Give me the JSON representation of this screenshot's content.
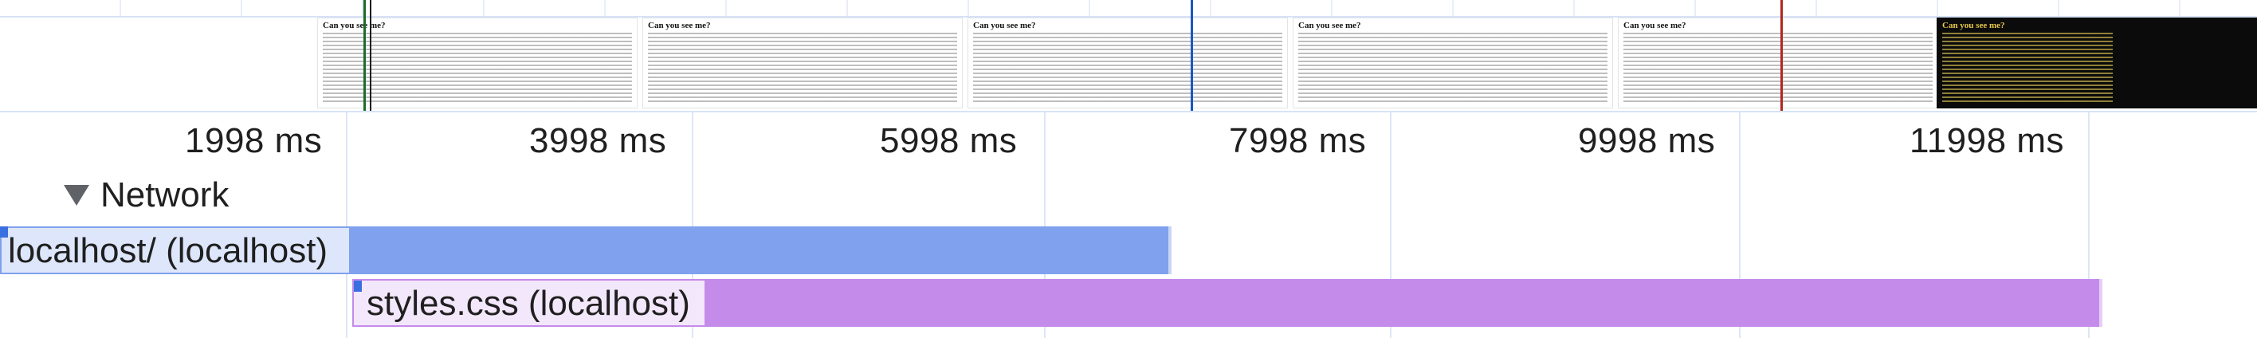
{
  "ruler": {
    "ticks": [
      "1998 ms",
      "3998 ms",
      "5998 ms",
      "7998 ms",
      "9998 ms",
      "11998 ms"
    ]
  },
  "filmstrip": {
    "frames": [
      {
        "title": "Can you see me?",
        "theme": "light"
      },
      {
        "title": "Can you see me?",
        "theme": "light"
      },
      {
        "title": "Can you see me?",
        "theme": "light"
      },
      {
        "title": "Can you see me?",
        "theme": "light"
      },
      {
        "title": "Can you see me?",
        "theme": "light"
      },
      {
        "title": "Can you see me?",
        "theme": "dark"
      }
    ],
    "marker_colors": {
      "green": "#1e6b2a",
      "blue": "#1a56c4",
      "red": "#b3261e"
    }
  },
  "network": {
    "label": "Network",
    "expanded_icon": "triangle-down-icon",
    "requests": [
      {
        "label": "localhost/ (localhost)",
        "color": "#7fa1ee"
      },
      {
        "label": "styles.css (localhost)",
        "color": "#c48bea"
      }
    ]
  }
}
